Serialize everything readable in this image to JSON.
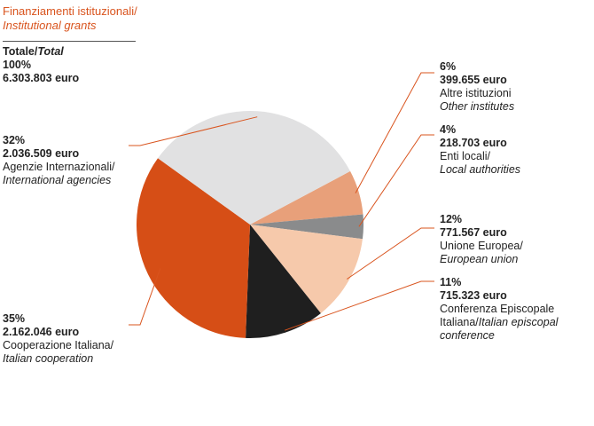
{
  "chart_data": {
    "type": "pie",
    "title": "Finanziamenti istituzionali/",
    "title_en": "Institutional grants",
    "total": {
      "label": "Totale",
      "label_en": "Total",
      "sep": "/",
      "percent": "100%",
      "amount": "6.303.803 euro"
    },
    "slices": [
      {
        "percent": "6%",
        "value": 399655,
        "amount": "399.655 euro",
        "label": "Altre istituzioni",
        "label_en": "Other institutes",
        "color": "#e8a07a"
      },
      {
        "percent": "4%",
        "value": 218703,
        "amount": "218.703 euro",
        "label": "Enti locali/",
        "label_en": "Local authorities",
        "color": "#8a8b8c"
      },
      {
        "percent": "12%",
        "value": 771567,
        "amount": "771.567 euro",
        "label": "Unione Europea/",
        "label_en": "European union",
        "color": "#f6c9ab"
      },
      {
        "percent": "11%",
        "value": 715323,
        "amount": "715.323 euro",
        "label": "Conferenza Episcopale",
        "label2": "Italiana/",
        "label_en": "Italian episcopal",
        "label_en2": "conference",
        "color": "#1f1f1f"
      },
      {
        "percent": "35%",
        "value": 2162046,
        "amount": "2.162.046 euro",
        "label": "Cooperazione Italiana/",
        "label_en": "Italian cooperation",
        "color": "#d64e16"
      },
      {
        "percent": "32%",
        "value": 2036509,
        "amount": "2.036.509 euro",
        "label": "Agenzie Internazionali/",
        "label_en": "International agencies",
        "color": "#e1e1e2"
      }
    ]
  }
}
